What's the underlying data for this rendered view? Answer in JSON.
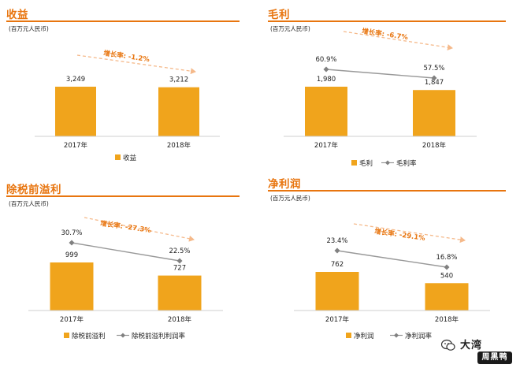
{
  "chart_data": [
    {
      "type": "bar",
      "title": "收益",
      "unit": "(百万元人民币)",
      "categories": [
        "2017年",
        "2018年"
      ],
      "series": [
        {
          "name": "收益",
          "values": [
            3249,
            3212
          ],
          "labels": [
            "3,249",
            "3,212"
          ]
        }
      ],
      "growth_label": "增长率: -1.2%",
      "colors": {
        "bar": "#f0a41c",
        "line": "#999999",
        "accent": "#e8750f"
      }
    },
    {
      "type": "bar",
      "title": "毛利",
      "unit": "(百万元人民币)",
      "categories": [
        "2017年",
        "2018年"
      ],
      "series": [
        {
          "name": "毛利",
          "values": [
            1980,
            1847
          ],
          "labels": [
            "1,980",
            "1,847"
          ]
        },
        {
          "name": "毛利率",
          "type": "line",
          "values": [
            60.9,
            57.5
          ],
          "labels": [
            "60.9%",
            "57.5%"
          ]
        }
      ],
      "growth_label": "增长率: -6.7%"
    },
    {
      "type": "bar",
      "title": "除税前溢利",
      "unit": "(百万元人民币)",
      "categories": [
        "2017年",
        "2018年"
      ],
      "series": [
        {
          "name": "除税前溢利",
          "values": [
            999,
            727
          ],
          "labels": [
            "999",
            "727"
          ]
        },
        {
          "name": "除税前溢利利润率",
          "type": "line",
          "values": [
            30.7,
            22.5
          ],
          "labels": [
            "30.7%",
            "22.5%"
          ]
        }
      ],
      "growth_label": "增长率: -27.3%"
    },
    {
      "type": "bar",
      "title": "净利润",
      "unit": "(百万元人民币)",
      "categories": [
        "2017年",
        "2018年"
      ],
      "series": [
        {
          "name": "净利润",
          "values": [
            762,
            540
          ],
          "labels": [
            "762",
            "540"
          ]
        },
        {
          "name": "净利润率",
          "type": "line",
          "values": [
            23.4,
            16.8
          ],
          "labels": [
            "23.4%",
            "16.8%"
          ]
        }
      ],
      "growth_label": "增长率: -29.1%"
    }
  ],
  "watermark": {
    "title": "大湾",
    "badge": "周黑鸭"
  }
}
